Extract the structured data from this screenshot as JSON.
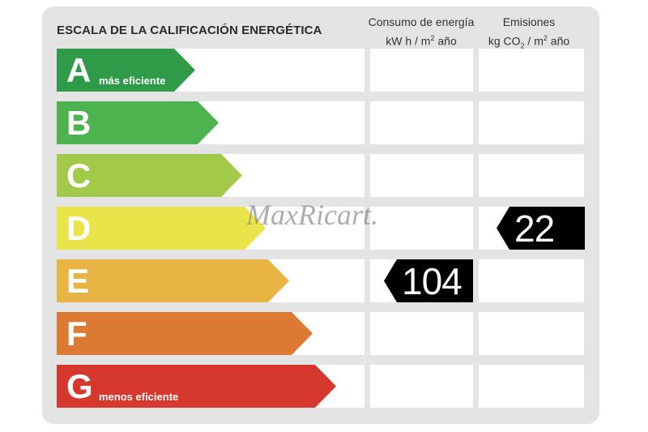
{
  "title": "ESCALA DE LA CALIFICACIÓN ENERGÉTICA",
  "columns": {
    "consumo_line1": "Consumo de energía",
    "consumo_line2_pre": "kW h  / m",
    "consumo_line2_sup": "2",
    "consumo_line2_post": " año",
    "emisiones_line1": "Emisiones",
    "emisiones_line2_pre": "kg CO",
    "emisiones_line2_sub": "2",
    "emisiones_line2_mid": "  / m",
    "emisiones_line2_sup": "2",
    "emisiones_line2_post": " año"
  },
  "grades": [
    {
      "letter": "A",
      "caption": "más eficiente",
      "color": "#2f9a48"
    },
    {
      "letter": "B",
      "caption": "",
      "color": "#4db34f"
    },
    {
      "letter": "C",
      "caption": "",
      "color": "#a3c94a"
    },
    {
      "letter": "D",
      "caption": "",
      "color": "#e9e44a"
    },
    {
      "letter": "E",
      "caption": "",
      "color": "#e8b443"
    },
    {
      "letter": "F",
      "caption": "",
      "color": "#dc7a34"
    },
    {
      "letter": "G",
      "caption": "menos eficiente",
      "color": "#d6382e"
    }
  ],
  "consumo": {
    "value": "104",
    "grade": "E"
  },
  "emisiones": {
    "value": "22",
    "grade": "D"
  },
  "watermark": "MaxRicart."
}
